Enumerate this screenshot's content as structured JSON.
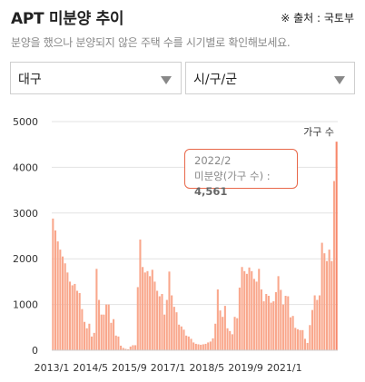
{
  "header": {
    "title": "APT 미분양 추이",
    "source": "※ 출처 : 국토부",
    "description": "분양을 했으나 분양되지 않은 주택 수를 시기별로 확인해보세요."
  },
  "filters": {
    "city": "대구",
    "district": "시/구/군"
  },
  "colors": {
    "bar": "#f9a78c",
    "tooltip_border": "#e8684a",
    "grid": "#e3e3e3"
  },
  "chart_data": {
    "type": "bar",
    "unit_label": "가구 수",
    "ylim": [
      0,
      5000
    ],
    "yticks": [
      0,
      1000,
      2000,
      3000,
      4000,
      5000
    ],
    "xticks": [
      "2013/1",
      "2014/5",
      "2015/9",
      "2017/1",
      "2018/5",
      "2019/9",
      "2021/1"
    ],
    "grid": "horizontal",
    "start_month": "2013/1",
    "end_month": "2022/2",
    "values": [
      2880,
      2620,
      2380,
      2200,
      2050,
      1900,
      1700,
      1500,
      1420,
      1450,
      1300,
      1250,
      900,
      620,
      480,
      580,
      300,
      380,
      1780,
      1100,
      780,
      780,
      1000,
      1000,
      600,
      680,
      320,
      300,
      100,
      50,
      30,
      20,
      80,
      110,
      110,
      1380,
      2420,
      1820,
      1700,
      1730,
      1620,
      1760,
      1500,
      1300,
      1180,
      1230,
      780,
      1100,
      1720,
      1200,
      950,
      830,
      560,
      520,
      450,
      320,
      300,
      250,
      170,
      140,
      130,
      120,
      130,
      140,
      170,
      190,
      260,
      580,
      1330,
      870,
      730,
      970,
      480,
      420,
      350,
      730,
      700,
      1370,
      1820,
      1730,
      1670,
      1810,
      1730,
      1560,
      1500,
      1780,
      1330,
      1070,
      1230,
      1190,
      1040,
      1070,
      1270,
      1620,
      1320,
      1000,
      1190,
      1180,
      720,
      750,
      490,
      460,
      440,
      440,
      250,
      160,
      550,
      880,
      1200,
      1100,
      1200,
      2350,
      2120,
      1950,
      2200,
      1950,
      3700,
      4561
    ],
    "tooltip": {
      "date": "2022/2",
      "label": "미분양(가구 수) : ",
      "value": "4,561"
    }
  }
}
